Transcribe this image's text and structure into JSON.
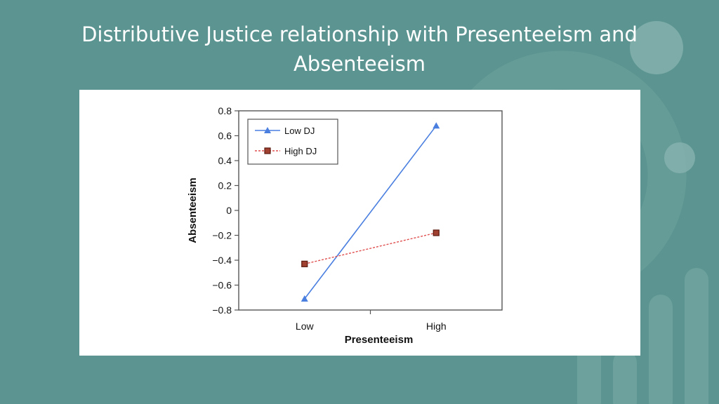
{
  "slide": {
    "title": "Distributive Justice relationship with Presenteeism and Absenteeism"
  },
  "colors": {
    "background": "#5b9490",
    "low_dj": "#4a7fe0",
    "high_dj_line": "#e05050",
    "high_dj_marker_fill": "#a04030",
    "high_dj_marker_stroke": "#5a1a10"
  },
  "chart_data": {
    "type": "line",
    "title": "",
    "xlabel": "Presenteeism",
    "ylabel": "Absenteeism",
    "categories": [
      "Low",
      "High"
    ],
    "ylim": [
      -0.8,
      0.8
    ],
    "yticks": [
      0.8,
      0.6,
      0.4,
      0.2,
      0,
      -0.2,
      -0.4,
      -0.6,
      -0.8
    ],
    "ytick_labels": [
      "0.8",
      "0.6",
      "0.4",
      "0.2",
      "0",
      "−0.2",
      "−0.4",
      "−0.6",
      "−0.8"
    ],
    "grid": false,
    "legend_position": "top-left",
    "series": [
      {
        "name": "Low DJ",
        "values": [
          -0.71,
          0.68
        ],
        "marker": "triangle",
        "line_style": "solid"
      },
      {
        "name": "High DJ",
        "values": [
          -0.43,
          -0.18
        ],
        "marker": "square",
        "line_style": "dashed"
      }
    ]
  }
}
